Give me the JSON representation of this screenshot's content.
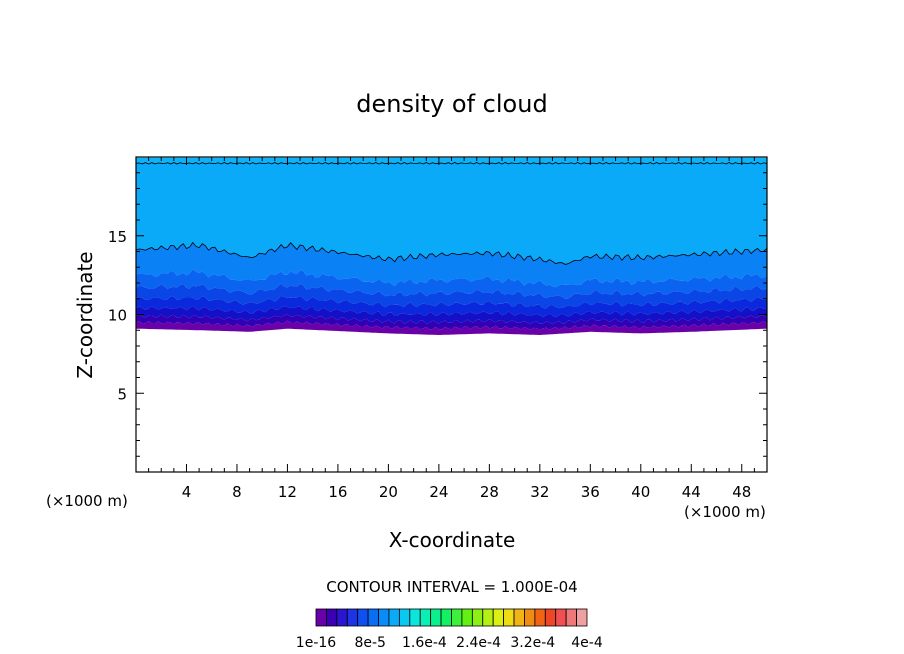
{
  "chart_data": {
    "type": "contour",
    "title": "density of cloud",
    "xlabel": "X-coordinate",
    "ylabel": "Z-coordinate",
    "x_unit_left": "(×1000 m)",
    "x_unit_right": "(×1000 m)",
    "xlim": [
      0,
      50
    ],
    "ylim": [
      0,
      20
    ],
    "x_ticks": [
      4,
      8,
      12,
      16,
      20,
      24,
      28,
      32,
      36,
      40,
      44,
      48
    ],
    "y_ticks": [
      5,
      10,
      15
    ],
    "grid": false,
    "contour_interval_text": "CONTOUR INTERVAL = 1.000E-04",
    "colorbar_labels": [
      "1e-16",
      "8e-5",
      "1.6e-4",
      "2.4e-4",
      "3.2e-4",
      "4e-4"
    ],
    "colorbar_colors": [
      "#6a00a8",
      "#3c00b4",
      "#2a16d2",
      "#1e32e6",
      "#1050f0",
      "#0a6ef5",
      "#0a8cf8",
      "#0aaaf8",
      "#0ac8f0",
      "#0ae6dc",
      "#0af0b4",
      "#0af08c",
      "#14f064",
      "#3cf03c",
      "#64f014",
      "#8cf014",
      "#b4f014",
      "#dcf014",
      "#f0dc14",
      "#f0b414",
      "#f08c14",
      "#f06414",
      "#f04628",
      "#f05050",
      "#f07878",
      "#f0a0a0"
    ],
    "band_colors": {
      "top_cap": "#0ab4fa",
      "upper": "#0aaaf8",
      "b1": "#0a82f5",
      "b2": "#0a64f0",
      "b3": "#0a46e6",
      "b4": "#0a28dc",
      "b5": "#1410c8",
      "b6": "#3200b4",
      "b7": "#6a00a8"
    },
    "field_profile": {
      "x": [
        0,
        5,
        9,
        12,
        20,
        24,
        28,
        32,
        34,
        36,
        40,
        44,
        50
      ],
      "upper_contour_z": [
        14.1,
        14.4,
        13.6,
        14.4,
        13.5,
        13.8,
        13.9,
        13.5,
        13.2,
        13.7,
        13.6,
        13.8,
        14.1
      ],
      "top_contour_z": [
        19.6,
        19.6,
        19.6,
        19.6,
        19.6,
        19.6,
        19.6,
        19.6,
        19.6,
        19.6,
        19.6,
        19.6,
        19.6
      ],
      "cloud_base_z": [
        9.1,
        9.0,
        8.9,
        9.1,
        8.8,
        8.7,
        8.8,
        8.7,
        8.8,
        8.9,
        8.8,
        8.9,
        9.1
      ]
    }
  }
}
